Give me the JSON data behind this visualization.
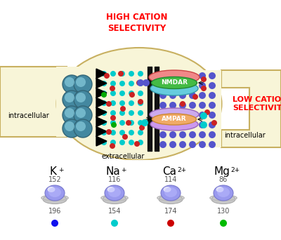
{
  "bg_color": "#ffffff",
  "cell_body_color": "#f8f5d8",
  "cell_outline_color": "#c8b060",
  "title_high": "HIGH CATION\nSELECTIVITY",
  "title_low": "LOW CATION\nSELECTIVITY",
  "intracellular_text": "intracellular",
  "extracellular_text": "extracellular",
  "nmdar_label": "NMDAR",
  "ampar_label": "AMPAR",
  "ion_labels": [
    "K",
    "Na",
    "Ca",
    "Mg"
  ],
  "ion_superscripts": [
    "+",
    "+",
    "2+",
    "2+"
  ],
  "ion_top_values": [
    "152",
    "116",
    "114",
    "86"
  ],
  "ion_bottom_values": [
    "196",
    "154",
    "174",
    "130"
  ],
  "ion_dot_colors": [
    "#1010ee",
    "#00cccc",
    "#cc0000",
    "#00bb00"
  ],
  "cyan_dot_color": "#00cccc",
  "blue_dot_color": "#5555cc",
  "red_dot_color": "#cc2222",
  "green_dot_color": "#00aa00",
  "teal_cell_color": "#5599aa",
  "nmdar_pink": "#f08888",
  "nmdar_green": "#44bb44",
  "nmdar_cyan": "#66ccdd",
  "ampar_orange": "#f0aa66",
  "ampar_purple": "#cc99ee"
}
